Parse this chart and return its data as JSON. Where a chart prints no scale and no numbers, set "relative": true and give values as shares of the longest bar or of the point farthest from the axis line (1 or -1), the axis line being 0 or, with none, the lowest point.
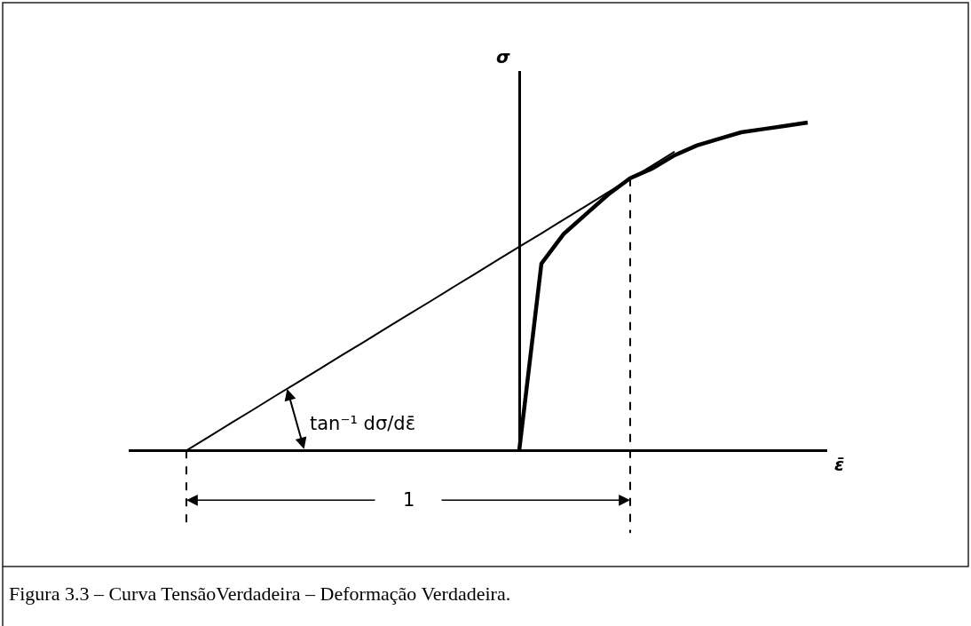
{
  "chart_data": {
    "type": "line",
    "relative": true,
    "xlabel": "ε̄",
    "ylabel": "σ",
    "line_style": "solid",
    "categories": [
      null,
      null,
      null,
      null,
      null,
      null,
      null,
      null,
      null,
      null,
      null,
      null,
      null,
      null,
      null,
      null,
      null,
      null,
      null,
      null,
      null,
      null,
      null,
      null,
      null,
      null,
      null,
      null,
      null,
      null,
      null
    ],
    "series": [
      {
        "color": "#000000",
        "values": [
          null,
          null,
          null,
          null,
          null,
          null,
          null,
          null,
          null,
          null,
          null,
          null,
          null,
          null,
          null,
          null,
          null,
          0,
          0.57,
          0.66,
          0.72,
          0.78,
          0.83,
          0.86,
          0.9,
          0.93,
          0.95,
          0.97,
          0.98,
          0.99,
          1
        ]
      },
      {
        "color": "#000000",
        "values": [
          null,
          null,
          0,
          0.041,
          0.083,
          0.124,
          0.166,
          0.207,
          0.248,
          0.29,
          0.331,
          0.373,
          0.414,
          0.455,
          0.497,
          0.538,
          0.58,
          0.621,
          0.662,
          0.704,
          0.745,
          0.787,
          0.828,
          0.869,
          0.911,
          null,
          null,
          null,
          null,
          null,
          null
        ]
      }
    ],
    "annotations": [
      "tan⁻¹ dσ/dε̄",
      "1",
      "Figura 3.3 – Curva TensãoVerdadeira – Deformação Verdadeira."
    ]
  }
}
